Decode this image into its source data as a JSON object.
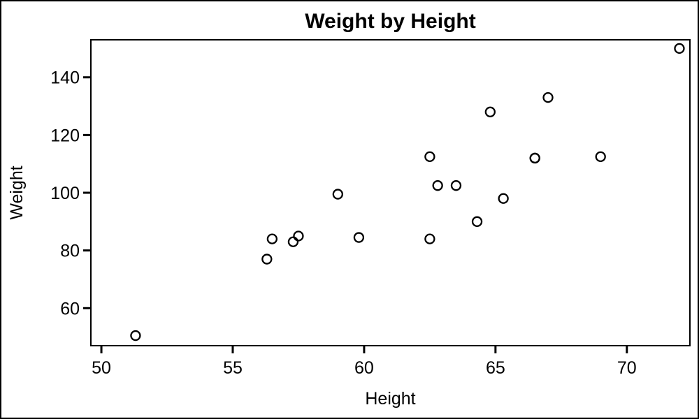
{
  "figure": {
    "background": "#ffffff",
    "border_color": "#000000"
  },
  "chart_data": {
    "type": "scatter",
    "title": "Weight by Height",
    "xlabel": "Height",
    "ylabel": "Weight",
    "xlim": [
      49.6,
      72.4
    ],
    "ylim": [
      47,
      153
    ],
    "x_ticks": [
      50,
      55,
      60,
      65,
      70
    ],
    "y_ticks": [
      60,
      80,
      100,
      120,
      140
    ],
    "grid": false,
    "legend": "none",
    "frame_color": "#000000",
    "background": "#ffffff",
    "marker": {
      "shape": "circle",
      "fill": "none",
      "stroke": "#000000",
      "radius": 6.5,
      "stroke_width": 2.3
    },
    "points": [
      {
        "x": 69.0,
        "y": 112.5
      },
      {
        "x": 56.5,
        "y": 84.0
      },
      {
        "x": 65.3,
        "y": 98.0
      },
      {
        "x": 62.8,
        "y": 102.5
      },
      {
        "x": 63.5,
        "y": 102.5
      },
      {
        "x": 57.3,
        "y": 83.0
      },
      {
        "x": 59.8,
        "y": 84.5
      },
      {
        "x": 62.5,
        "y": 112.5
      },
      {
        "x": 62.5,
        "y": 84.0
      },
      {
        "x": 59.0,
        "y": 99.5
      },
      {
        "x": 51.3,
        "y": 50.5
      },
      {
        "x": 64.3,
        "y": 90.0
      },
      {
        "x": 56.3,
        "y": 77.0
      },
      {
        "x": 66.5,
        "y": 112.0
      },
      {
        "x": 72.0,
        "y": 150.0
      },
      {
        "x": 64.8,
        "y": 128.0
      },
      {
        "x": 67.0,
        "y": 133.0
      },
      {
        "x": 57.5,
        "y": 85.0
      },
      {
        "x": 66.5,
        "y": 112.0
      }
    ]
  }
}
